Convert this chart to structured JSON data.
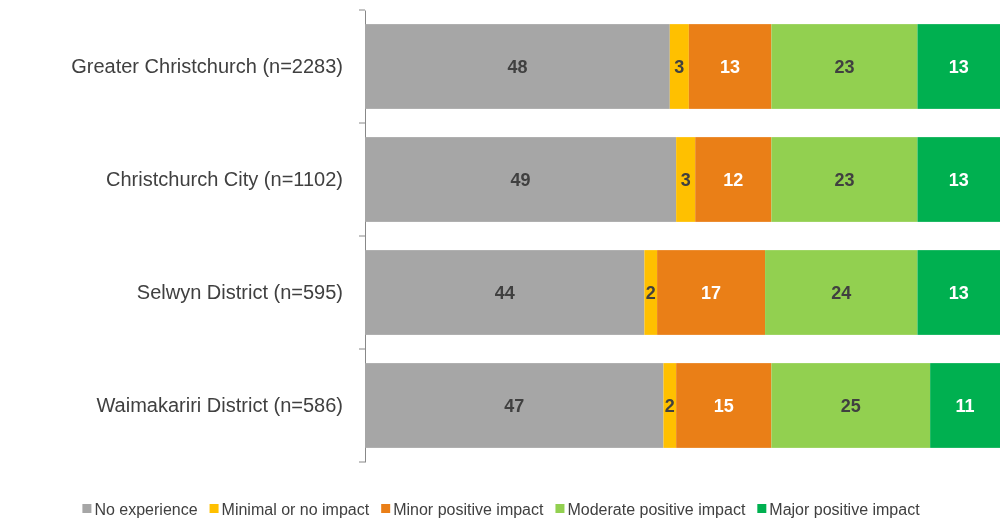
{
  "chart_data": {
    "type": "bar",
    "orientation": "horizontal",
    "stacked": true,
    "data_labels": true,
    "legend": "bottom",
    "categories": [
      "Greater Christchurch (n=2283)",
      "Christchurch City (n=1102)",
      "Selwyn District (n=595)",
      "Waimakariri District (n=586)"
    ],
    "xlim": [
      0,
      100
    ],
    "tick_labels": "y",
    "series": [
      {
        "name": "No experience",
        "color": "#a6a6a6",
        "values": [
          48,
          49,
          44,
          47
        ]
      },
      {
        "name": "Minimal or no impact",
        "color": "#ffc000",
        "values": [
          3,
          3,
          2,
          2
        ]
      },
      {
        "name": "Minor positive impact",
        "color": "#ea7f17",
        "values": [
          13,
          12,
          17,
          15
        ]
      },
      {
        "name": "Moderate positive impact",
        "color": "#92d050",
        "values": [
          23,
          23,
          24,
          25
        ]
      },
      {
        "name": "Major positive impact",
        "color": "#00b050",
        "values": [
          13,
          13,
          13,
          11
        ]
      }
    ]
  }
}
